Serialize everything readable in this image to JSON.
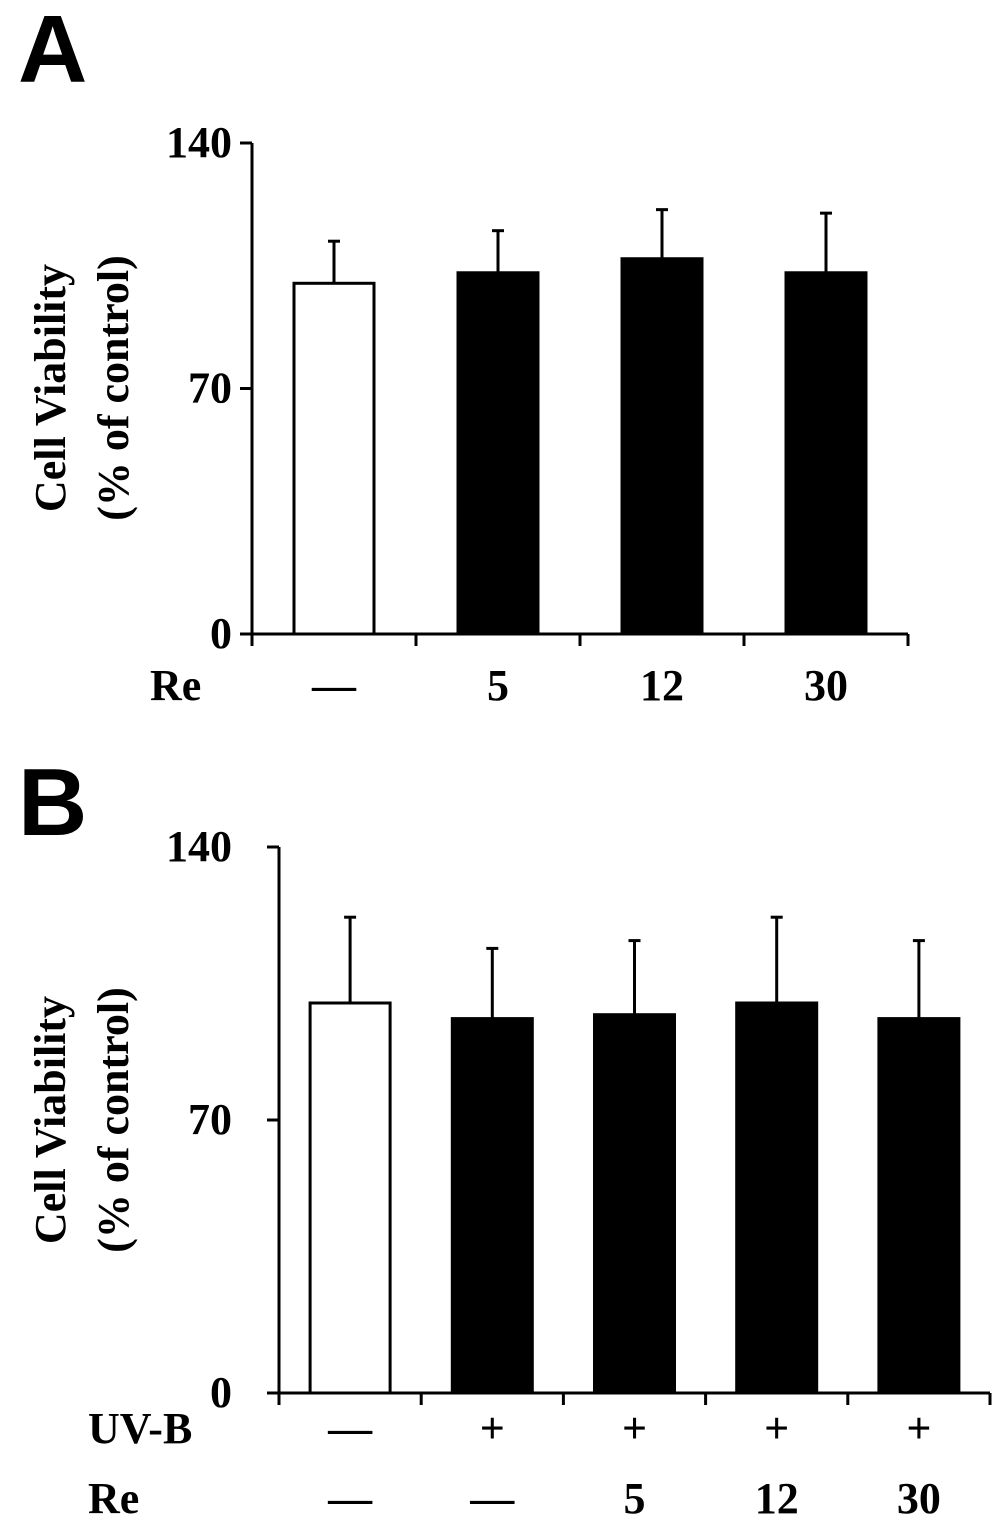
{
  "chart_data": [
    {
      "panel_label": "A",
      "type": "bar",
      "ylabel_lines": [
        "Cell Viability",
        "(% of control)"
      ],
      "ylim": [
        0,
        140
      ],
      "yticks": [
        "0",
        "70",
        "140"
      ],
      "row_labels": [
        "Re"
      ],
      "categories": [
        [
          "—"
        ],
        [
          "5"
        ],
        [
          "12"
        ],
        [
          "30"
        ]
      ],
      "values": [
        100,
        103,
        107,
        103
      ],
      "errors": [
        12,
        12,
        14,
        17
      ],
      "bar_styles": [
        "open",
        "filled",
        "filled",
        "filled"
      ]
    },
    {
      "panel_label": "B",
      "type": "bar",
      "ylabel_lines": [
        "Cell Viability",
        "(% of control)"
      ],
      "ylim": [
        0,
        140
      ],
      "yticks": [
        "0",
        "70",
        "140"
      ],
      "row_labels": [
        "UV-B",
        "Re"
      ],
      "categories": [
        [
          "—",
          "—"
        ],
        [
          "+",
          "—"
        ],
        [
          "+",
          "5"
        ],
        [
          "+",
          "12"
        ],
        [
          "+",
          "30"
        ]
      ],
      "values": [
        100,
        96,
        97,
        100,
        96
      ],
      "errors": [
        22,
        18,
        19,
        22,
        20
      ],
      "bar_styles": [
        "open",
        "filled",
        "filled",
        "filled",
        "filled"
      ]
    }
  ]
}
